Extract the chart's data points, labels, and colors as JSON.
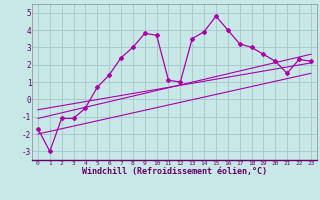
{
  "xlabel": "Windchill (Refroidissement éolien,°C)",
  "bg_color": "#c8e8e8",
  "grid_color": "#a8cccc",
  "line_color": "#aa00aa",
  "xlim": [
    -0.5,
    23.5
  ],
  "ylim": [
    -3.5,
    5.5
  ],
  "xticks": [
    0,
    1,
    2,
    3,
    4,
    5,
    6,
    7,
    8,
    9,
    10,
    11,
    12,
    13,
    14,
    15,
    16,
    17,
    18,
    19,
    20,
    21,
    22,
    23
  ],
  "yticks": [
    -3,
    -2,
    -1,
    0,
    1,
    2,
    3,
    4,
    5
  ],
  "main_x": [
    0,
    1,
    2,
    3,
    4,
    5,
    6,
    7,
    8,
    9,
    10,
    11,
    12,
    13,
    14,
    15,
    16,
    17,
    18,
    19,
    20,
    21,
    22,
    23
  ],
  "main_y": [
    -1.7,
    -3.0,
    -1.1,
    -1.1,
    -0.5,
    0.7,
    1.4,
    2.4,
    3.0,
    3.8,
    3.7,
    1.1,
    1.0,
    3.5,
    3.9,
    4.8,
    4.0,
    3.2,
    3.0,
    2.6,
    2.2,
    1.5,
    2.3,
    2.2
  ],
  "line1_x": [
    0,
    23
  ],
  "line1_y": [
    -1.1,
    2.6
  ],
  "line2_x": [
    0,
    23
  ],
  "line2_y": [
    -0.6,
    2.1
  ],
  "line3_x": [
    0,
    23
  ],
  "line3_y": [
    -2.0,
    1.5
  ]
}
